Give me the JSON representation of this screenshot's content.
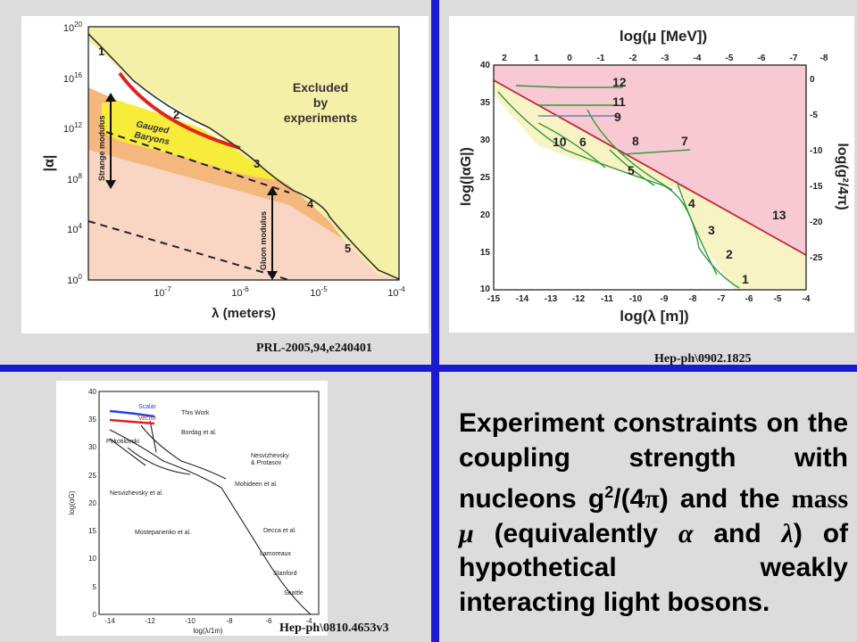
{
  "captions": {
    "top_left": "PRL-2005,94,e240401",
    "top_right": "Hep-ph\\0902.1825",
    "bottom_left": "Hep-ph\\0810.4653v3"
  },
  "statement": {
    "part1": "Experiment constraints on the coupling strength with nucleons g",
    "sup": "2",
    "part2": "/(4",
    "pi": "π",
    "part3": ") and the",
    "mass_word": "mass",
    "mu": "μ",
    "part4": "(equivalently",
    "alpha": "α",
    "and_word": "and",
    "lambda": "λ",
    "part5": ") of hypothetical weakly interacting light bosons."
  },
  "colors": {
    "divider": "#1a1ad4",
    "excluded_yellow": "#f5f0a8",
    "gauged_yellow": "#f7ec3a",
    "strange_orange": "#f4b77e",
    "gluon_pink": "#f9d6c4",
    "excluded_pink": "#f9c9d3",
    "allowed_yellow": "#f8f3c4",
    "curve_green": "#2f9a3a",
    "gauged_red": "#e0241c",
    "scalar_blue": "#2244dd",
    "vector_red": "#e02020"
  },
  "chart_data": [
    {
      "type": "line",
      "id": "prl-2005",
      "xlabel": "λ (meters)",
      "ylabel": "|α|",
      "x_log": true,
      "y_log": true,
      "xlim": [
        1e-08,
        0.0001
      ],
      "ylim": [
        1,
        1e+20
      ],
      "x_ticks": [
        "10-7",
        "10-6",
        "10-5",
        "10-4"
      ],
      "y_ticks": [
        "100",
        "104",
        "108",
        "1012",
        "1016",
        "1020"
      ],
      "regions": [
        "Excluded by experiments",
        "Gauged Baryons",
        "Strange modulus",
        "Gluon modulus"
      ],
      "curve_labels": [
        "1",
        "2",
        "3",
        "4",
        "5"
      ],
      "bound": {
        "x": [
          1.2e-08,
          3e-08,
          1e-07,
          3e-07,
          1e-06,
          3e-06,
          1e-05,
          3e-05,
          0.0001
        ],
        "y": [
          1e+19,
          3e+16,
          100000000000000.0,
          1000000000000.0,
          10000000000.0,
          200000000.0,
          1000000.0,
          1000.0,
          10.0
        ]
      }
    },
    {
      "type": "line",
      "id": "hep-ph-0902-1825",
      "xlabel": "log(λ [m])",
      "ylabel": "log(|αG|)",
      "x2label": "log(μ [MeV])",
      "y2label": "log(g²/4π)",
      "xlim": [
        -15,
        -4
      ],
      "ylim": [
        10,
        40
      ],
      "x_ticks": [
        -15,
        -14,
        -13,
        -12,
        -11,
        -10,
        -9,
        -8,
        -7,
        -6,
        -5,
        -4
      ],
      "y_ticks": [
        10,
        15,
        20,
        25,
        30,
        35,
        40
      ],
      "x2_ticks": [
        2,
        1,
        0,
        -1,
        -2,
        -3,
        -4,
        -5,
        -6,
        -7,
        -8
      ],
      "y2_ticks": [
        0,
        -5,
        -10,
        -15,
        -20,
        -25
      ],
      "curve_labels": [
        "1",
        "2",
        "3",
        "4",
        "5",
        "6",
        "7",
        "8",
        "9",
        "10",
        "11",
        "12",
        "13"
      ],
      "excluded_line": {
        "x": [
          -15,
          -4
        ],
        "y": [
          38,
          15
        ]
      }
    },
    {
      "type": "line",
      "id": "hep-ph-0810-4653v3",
      "xlabel": "log(λ/1m)",
      "ylabel": "log(αG)",
      "xlim": [
        -14.5,
        -3.5
      ],
      "ylim": [
        0,
        40
      ],
      "x_ticks": [
        -14,
        -12,
        -10,
        -8,
        -6,
        -4
      ],
      "y_ticks": [
        0,
        5,
        10,
        15,
        20,
        25,
        30,
        35,
        40
      ],
      "series": [
        {
          "name": "Scalar",
          "x": [
            -14,
            -12.5,
            -11
          ],
          "y": [
            37.5,
            37,
            36.6
          ]
        },
        {
          "name": "Vector",
          "x": [
            -14,
            -12.5,
            -11
          ],
          "y": [
            35.5,
            35.2,
            35
          ]
        }
      ],
      "annotations": [
        "This Work",
        "Bordag et al.",
        "Pokotilovski",
        "Nesvizhevsky & Protasov",
        "Nesvizhevsky et al.",
        "Mohideen et al.",
        "Mostepanenko et al.",
        "Decca et al.",
        "Lamoreaux",
        "Stanford",
        "Seattle"
      ]
    }
  ]
}
